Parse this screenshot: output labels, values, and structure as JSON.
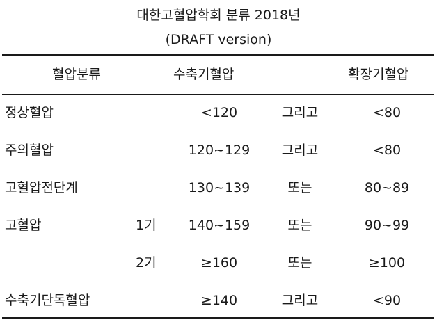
{
  "title": "대한고혈압학회 분류 2018년",
  "subtitle": "(DRAFT version)",
  "headers": {
    "classification": "혈압분류",
    "systolic": "수축기혈압",
    "diastolic": "확장기혈압"
  },
  "rows": [
    {
      "name": "정상혈압",
      "stage": "",
      "systolic": "<120",
      "conj": "그리고",
      "diastolic": "<80"
    },
    {
      "name": "주의혈압",
      "stage": "",
      "systolic": "120~129",
      "conj": "그리고",
      "diastolic": "<80"
    },
    {
      "name": "고혈압전단계",
      "stage": "",
      "systolic": "130~139",
      "conj": "또는",
      "diastolic": "80~89"
    },
    {
      "name": "고혈압",
      "stage": "1기",
      "systolic": "140~159",
      "conj": "또는",
      "diastolic": "90~99"
    },
    {
      "name": "",
      "stage": "2기",
      "systolic": "≥160",
      "conj": "또는",
      "diastolic": "≥100"
    },
    {
      "name": "수축기단독혈압",
      "stage": "",
      "systolic": "≥140",
      "conj": "그리고",
      "diastolic": "<90"
    }
  ]
}
